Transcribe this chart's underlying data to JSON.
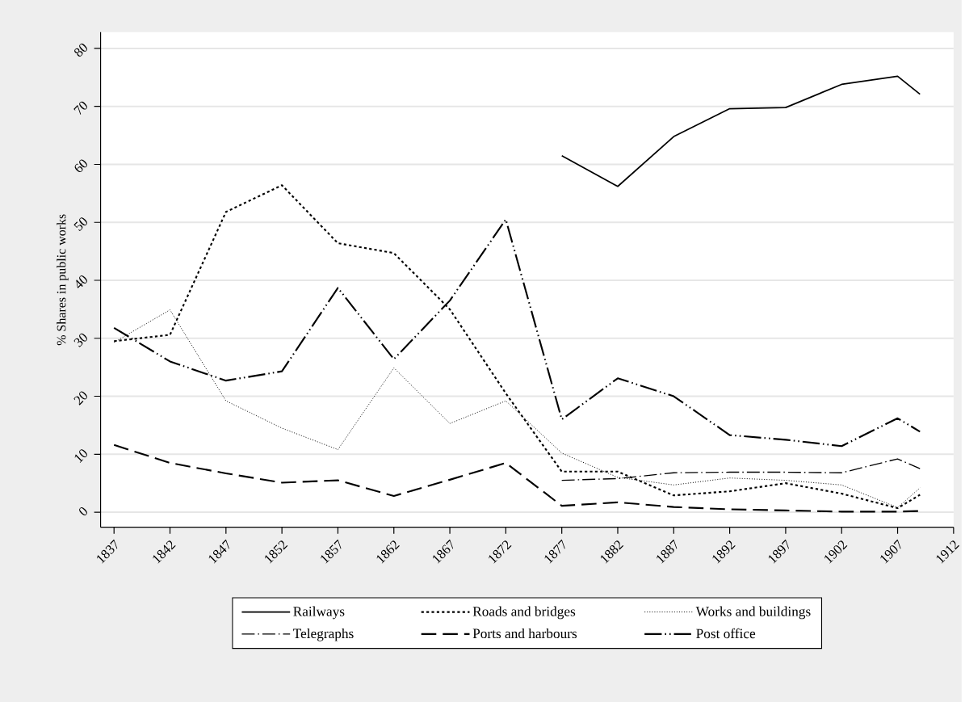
{
  "chart_data": {
    "type": "line",
    "ylabel": "% Shares in public works",
    "x": [
      1837,
      1842,
      1847,
      1852,
      1857,
      1862,
      1867,
      1872,
      1877,
      1882,
      1887,
      1892,
      1897,
      1902,
      1907,
      1909
    ],
    "series": [
      {
        "name": "Railways",
        "color": "#000000",
        "line_style": "solid",
        "values": [
          null,
          null,
          null,
          null,
          null,
          null,
          null,
          null,
          61.5,
          56.2,
          64.8,
          69.6,
          69.8,
          73.8,
          75.2,
          72.1
        ]
      },
      {
        "name": "Roads and bridges",
        "color": "#000000",
        "line_style": "dotted",
        "values": [
          29.5,
          30.6,
          51.8,
          56.4,
          46.4,
          44.7,
          35.0,
          20.5,
          7.0,
          7.0,
          2.9,
          3.6,
          5.0,
          3.2,
          0.7,
          3.0
        ]
      },
      {
        "name": "Works and buildings",
        "color": "#000000",
        "line_style": "densely dotted",
        "values": [
          29.3,
          34.9,
          19.2,
          14.5,
          10.8,
          24.9,
          15.3,
          19.2,
          10.2,
          6.0,
          4.7,
          5.9,
          5.5,
          4.7,
          0.8,
          4.2
        ]
      },
      {
        "name": "Telegraphs",
        "color": "#000000",
        "line_style": "dashdot",
        "values": [
          null,
          null,
          null,
          null,
          null,
          null,
          null,
          null,
          5.5,
          5.8,
          6.8,
          6.9,
          6.9,
          6.8,
          9.2,
          7.5
        ]
      },
      {
        "name": "Ports and harbours",
        "color": "#000000",
        "line_style": "longdash",
        "values": [
          11.6,
          8.5,
          6.7,
          5.1,
          5.5,
          2.8,
          5.6,
          8.5,
          1.1,
          1.7,
          0.9,
          0.5,
          0.3,
          0.1,
          0.1,
          0.2
        ]
      },
      {
        "name": "Post office",
        "color": "#000000",
        "line_style": "dashdotdot",
        "values": [
          31.8,
          26.0,
          22.7,
          24.3,
          38.7,
          26.4,
          36.5,
          50.5,
          16.0,
          23.1,
          20.0,
          13.3,
          12.5,
          11.4,
          16.2,
          13.9
        ]
      }
    ],
    "xlim": [
      1835.8,
      1912
    ],
    "ylim": [
      -2.6,
      82.8
    ],
    "xticks": [
      1837,
      1842,
      1847,
      1852,
      1857,
      1862,
      1867,
      1872,
      1877,
      1882,
      1887,
      1892,
      1897,
      1902,
      1907,
      1912
    ],
    "yticks": [
      0,
      10,
      20,
      30,
      40,
      50,
      60,
      70,
      80
    ],
    "grid": "y",
    "legend": "bottom",
    "marker": "none"
  }
}
